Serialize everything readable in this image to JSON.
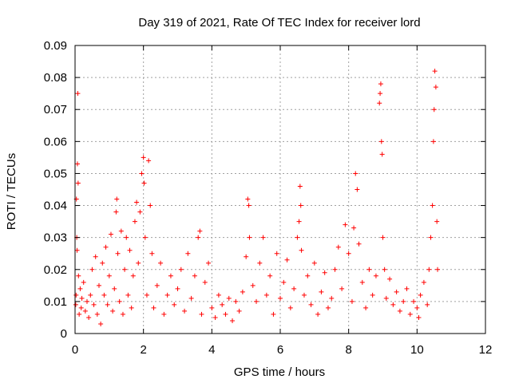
{
  "chart_data": {
    "type": "scatter",
    "title": "Day 319 of 2021, Rate Of TEC Index for receiver lord",
    "xlabel": "GPS time / hours",
    "ylabel": "ROTI / TECUs",
    "xlim": [
      0,
      12
    ],
    "ylim": [
      0,
      0.09
    ],
    "x_ticks": [
      "0",
      "2",
      "4",
      "6",
      "8",
      "10",
      "12"
    ],
    "y_ticks": [
      "0",
      "0.01",
      "0.02",
      "0.03",
      "0.04",
      "0.05",
      "0.06",
      "0.07",
      "0.08",
      "0.09"
    ],
    "grid": true,
    "marker": "+",
    "color": "#ff0000",
    "series": [
      {
        "points": [
          [
            0.02,
            0.009
          ],
          [
            0.03,
            0.012
          ],
          [
            0.04,
            0.042
          ],
          [
            0.05,
            0.03
          ],
          [
            0.06,
            0.026
          ],
          [
            0.07,
            0.053
          ],
          [
            0.08,
            0.075
          ],
          [
            0.09,
            0.047
          ],
          [
            0.1,
            0.018
          ],
          [
            0.12,
            0.006
          ],
          [
            0.15,
            0.014
          ],
          [
            0.18,
            0.008
          ],
          [
            0.2,
            0.011
          ],
          [
            0.25,
            0.016
          ],
          [
            0.3,
            0.007
          ],
          [
            0.35,
            0.01
          ],
          [
            0.4,
            0.005
          ],
          [
            0.45,
            0.012
          ],
          [
            0.5,
            0.02
          ],
          [
            0.55,
            0.009
          ],
          [
            0.6,
            0.024
          ],
          [
            0.65,
            0.006
          ],
          [
            0.7,
            0.015
          ],
          [
            0.75,
            0.003
          ],
          [
            0.8,
            0.022
          ],
          [
            0.85,
            0.012
          ],
          [
            0.9,
            0.027
          ],
          [
            0.95,
            0.009
          ],
          [
            1.0,
            0.018
          ],
          [
            1.05,
            0.031
          ],
          [
            1.1,
            0.007
          ],
          [
            1.15,
            0.014
          ],
          [
            1.2,
            0.038
          ],
          [
            1.22,
            0.042
          ],
          [
            1.25,
            0.025
          ],
          [
            1.3,
            0.01
          ],
          [
            1.35,
            0.032
          ],
          [
            1.4,
            0.006
          ],
          [
            1.45,
            0.02
          ],
          [
            1.5,
            0.03
          ],
          [
            1.55,
            0.012
          ],
          [
            1.6,
            0.026
          ],
          [
            1.65,
            0.008
          ],
          [
            1.7,
            0.018
          ],
          [
            1.75,
            0.035
          ],
          [
            1.8,
            0.041
          ],
          [
            1.85,
            0.022
          ],
          [
            1.9,
            0.038
          ],
          [
            1.95,
            0.05
          ],
          [
            2.0,
            0.055
          ],
          [
            2.02,
            0.047
          ],
          [
            2.05,
            0.03
          ],
          [
            2.1,
            0.012
          ],
          [
            2.15,
            0.054
          ],
          [
            2.2,
            0.04
          ],
          [
            2.25,
            0.025
          ],
          [
            2.3,
            0.008
          ],
          [
            2.4,
            0.015
          ],
          [
            2.5,
            0.022
          ],
          [
            2.6,
            0.006
          ],
          [
            2.7,
            0.012
          ],
          [
            2.8,
            0.018
          ],
          [
            2.9,
            0.009
          ],
          [
            3.0,
            0.014
          ],
          [
            3.1,
            0.02
          ],
          [
            3.2,
            0.007
          ],
          [
            3.3,
            0.025
          ],
          [
            3.4,
            0.011
          ],
          [
            3.5,
            0.018
          ],
          [
            3.6,
            0.03
          ],
          [
            3.65,
            0.032
          ],
          [
            3.7,
            0.006
          ],
          [
            3.8,
            0.016
          ],
          [
            3.9,
            0.022
          ],
          [
            4.0,
            0.008
          ],
          [
            4.1,
            0.005
          ],
          [
            4.2,
            0.012
          ],
          [
            4.3,
            0.009
          ],
          [
            4.4,
            0.006
          ],
          [
            4.5,
            0.011
          ],
          [
            4.6,
            0.004
          ],
          [
            4.7,
            0.01
          ],
          [
            4.8,
            0.007
          ],
          [
            4.9,
            0.013
          ],
          [
            5.0,
            0.024
          ],
          [
            5.05,
            0.042
          ],
          [
            5.08,
            0.04
          ],
          [
            5.1,
            0.03
          ],
          [
            5.2,
            0.015
          ],
          [
            5.3,
            0.01
          ],
          [
            5.4,
            0.022
          ],
          [
            5.5,
            0.03
          ],
          [
            5.6,
            0.012
          ],
          [
            5.7,
            0.018
          ],
          [
            5.8,
            0.006
          ],
          [
            5.9,
            0.025
          ],
          [
            6.0,
            0.011
          ],
          [
            6.1,
            0.016
          ],
          [
            6.2,
            0.023
          ],
          [
            6.3,
            0.008
          ],
          [
            6.4,
            0.014
          ],
          [
            6.5,
            0.03
          ],
          [
            6.55,
            0.035
          ],
          [
            6.58,
            0.046
          ],
          [
            6.6,
            0.04
          ],
          [
            6.62,
            0.026
          ],
          [
            6.7,
            0.012
          ],
          [
            6.8,
            0.018
          ],
          [
            6.9,
            0.009
          ],
          [
            7.0,
            0.022
          ],
          [
            7.1,
            0.006
          ],
          [
            7.2,
            0.013
          ],
          [
            7.3,
            0.019
          ],
          [
            7.4,
            0.008
          ],
          [
            7.5,
            0.011
          ],
          [
            7.6,
            0.02
          ],
          [
            7.7,
            0.027
          ],
          [
            7.8,
            0.014
          ],
          [
            7.9,
            0.034
          ],
          [
            8.0,
            0.025
          ],
          [
            8.1,
            0.01
          ],
          [
            8.15,
            0.033
          ],
          [
            8.2,
            0.05
          ],
          [
            8.25,
            0.045
          ],
          [
            8.3,
            0.028
          ],
          [
            8.4,
            0.016
          ],
          [
            8.5,
            0.008
          ],
          [
            8.6,
            0.02
          ],
          [
            8.7,
            0.012
          ],
          [
            8.8,
            0.018
          ],
          [
            8.9,
            0.072
          ],
          [
            8.92,
            0.075
          ],
          [
            8.94,
            0.078
          ],
          [
            8.96,
            0.06
          ],
          [
            8.98,
            0.056
          ],
          [
            9.0,
            0.03
          ],
          [
            9.05,
            0.02
          ],
          [
            9.1,
            0.011
          ],
          [
            9.2,
            0.017
          ],
          [
            9.3,
            0.009
          ],
          [
            9.4,
            0.013
          ],
          [
            9.5,
            0.007
          ],
          [
            9.6,
            0.01
          ],
          [
            9.7,
            0.014
          ],
          [
            9.8,
            0.006
          ],
          [
            9.9,
            0.01
          ],
          [
            10.0,
            0.008
          ],
          [
            10.05,
            0.005
          ],
          [
            10.1,
            0.012
          ],
          [
            10.2,
            0.016
          ],
          [
            10.3,
            0.009
          ],
          [
            10.35,
            0.02
          ],
          [
            10.4,
            0.03
          ],
          [
            10.45,
            0.04
          ],
          [
            10.48,
            0.06
          ],
          [
            10.5,
            0.07
          ],
          [
            10.52,
            0.082
          ],
          [
            10.55,
            0.077
          ],
          [
            10.58,
            0.035
          ],
          [
            10.6,
            0.02
          ]
        ]
      }
    ]
  }
}
